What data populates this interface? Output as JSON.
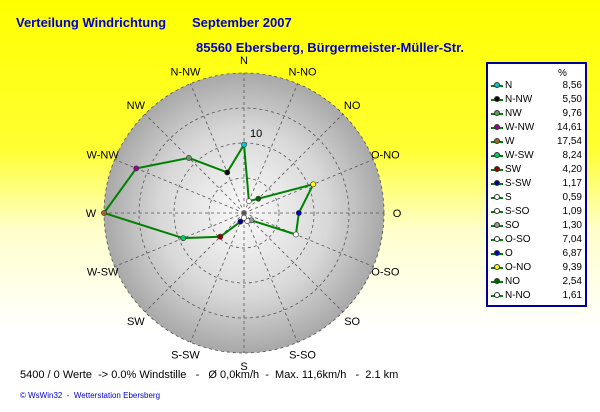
{
  "header": {
    "title": "Verteilung Windrichtung",
    "period": "September 2007",
    "station": "85560 Ebersberg, Bürgermeister-Müller-Str."
  },
  "chart_data": {
    "type": "radar",
    "directions": [
      "N",
      "N-NO",
      "NO",
      "O-NO",
      "O",
      "O-SO",
      "SO",
      "S-SO",
      "S",
      "S-SW",
      "SW",
      "W-SW",
      "W",
      "W-NW",
      "NW",
      "N-NW"
    ],
    "values": [
      8.56,
      1.61,
      2.54,
      9.39,
      6.87,
      7.04,
      1.3,
      1.09,
      0.59,
      1.17,
      4.2,
      8.24,
      17.54,
      14.61,
      9.76,
      5.5
    ],
    "ring_max": 17.54,
    "ring_label": "10",
    "ring_label_value": 10,
    "line_color": "#008000",
    "legend_unit": "%",
    "legend": [
      {
        "name": "N",
        "value": "8,56",
        "color": "#00cccc"
      },
      {
        "name": "N-NW",
        "value": "5,50",
        "color": "#000000"
      },
      {
        "name": "NW",
        "value": "9,76",
        "color": "#669966"
      },
      {
        "name": "W-NW",
        "value": "14,61",
        "color": "#990099"
      },
      {
        "name": "W",
        "value": "17,54",
        "color": "#996633"
      },
      {
        "name": "W-SW",
        "value": "8,24",
        "color": "#00cc66"
      },
      {
        "name": "SW",
        "value": "4,20",
        "color": "#990000"
      },
      {
        "name": "S-SW",
        "value": "1,17",
        "color": "#000099"
      },
      {
        "name": "S",
        "value": "0,59",
        "color": "#ffffff"
      },
      {
        "name": "S-SO",
        "value": "1,09",
        "color": "#ffffff"
      },
      {
        "name": "SO",
        "value": "1,30",
        "color": "#999999"
      },
      {
        "name": "O-SO",
        "value": "7,04",
        "color": "#ffffff"
      },
      {
        "name": "O",
        "value": "6,87",
        "color": "#0000cc"
      },
      {
        "name": "O-NO",
        "value": "9,39",
        "color": "#ffff00"
      },
      {
        "name": "NO",
        "value": "2,54",
        "color": "#006600"
      },
      {
        "name": "N-NO",
        "value": "1,61",
        "color": "#ffffff"
      }
    ]
  },
  "footer": {
    "stats": "5400 / 0 Werte  -> 0.0% Windstille   -   Ø 0,0km/h  -  Max. 11,6km/h   -  2.1 km",
    "copyright": "© WsWin32  -  Wetterstation Ebersberg"
  }
}
